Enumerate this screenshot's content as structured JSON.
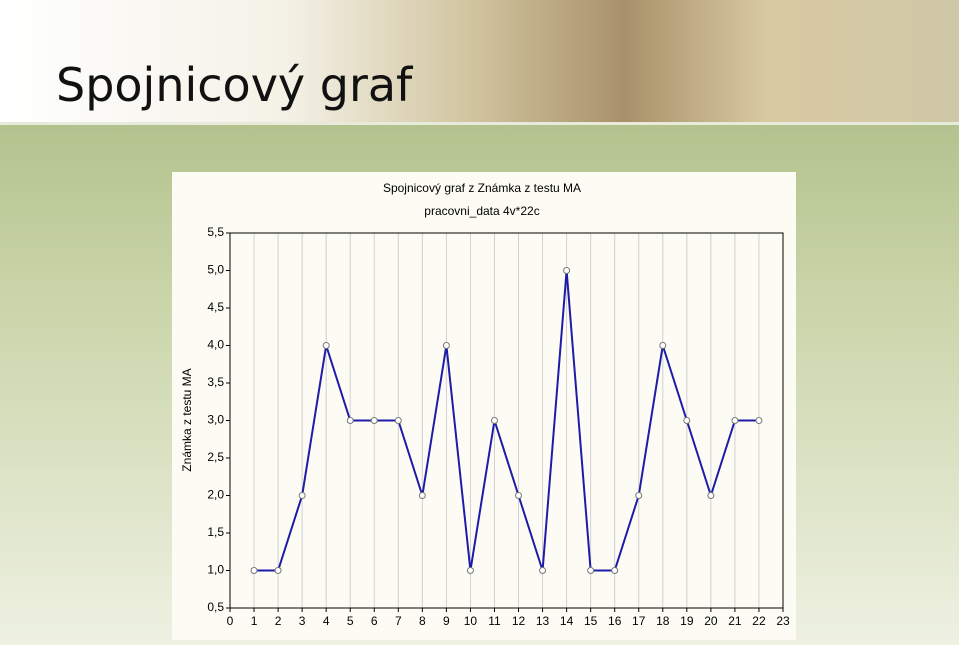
{
  "slide_title": "Spojnicový graf",
  "chart_data": {
    "type": "line",
    "title": "Spojnicový graf z Známka z testu MA",
    "subtitle": "pracovni_data 4v*22c",
    "y_label": "Známka z testu MA",
    "x": [
      1,
      2,
      3,
      4,
      5,
      6,
      7,
      8,
      9,
      10,
      11,
      12,
      13,
      14,
      15,
      16,
      17,
      18,
      19,
      20,
      21,
      22
    ],
    "values": [
      1,
      1,
      2,
      4,
      3,
      3,
      3,
      2,
      4,
      1,
      3,
      2,
      1,
      5,
      1,
      1,
      2,
      4,
      3,
      2,
      3,
      3
    ],
    "color": "#1c1ca8",
    "xlim": [
      0,
      23
    ],
    "xticks": [
      0,
      1,
      2,
      3,
      4,
      5,
      6,
      7,
      8,
      9,
      10,
      11,
      12,
      13,
      14,
      15,
      16,
      17,
      18,
      19,
      20,
      21,
      22,
      23
    ],
    "ylim": [
      0.5,
      5.5
    ],
    "yticks": [
      {
        "value": 0.5,
        "label": "0,5"
      },
      {
        "value": 1,
        "label": "1,0"
      },
      {
        "value": 1.5,
        "label": "1,5"
      },
      {
        "value": 2,
        "label": "2,0"
      },
      {
        "value": 2.5,
        "label": "2,5"
      },
      {
        "value": 3,
        "label": "3,0"
      },
      {
        "value": 3.5,
        "label": "3,5"
      },
      {
        "value": 4,
        "label": "4,0"
      },
      {
        "value": 4.5,
        "label": "4,5"
      },
      {
        "value": 5,
        "label": "5,0"
      },
      {
        "value": 5.5,
        "label": "5,5"
      }
    ],
    "grid": true
  }
}
